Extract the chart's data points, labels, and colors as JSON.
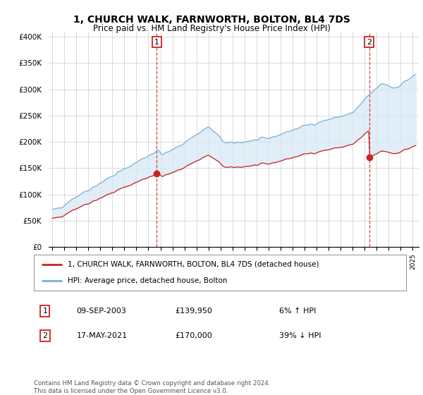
{
  "title": "1, CHURCH WALK, FARNWORTH, BOLTON, BL4 7DS",
  "subtitle": "Price paid vs. HM Land Registry's House Price Index (HPI)",
  "title_fontsize": 10,
  "subtitle_fontsize": 8.5,
  "ylabel_ticks": [
    "£0",
    "£50K",
    "£100K",
    "£150K",
    "£200K",
    "£250K",
    "£300K",
    "£350K",
    "£400K"
  ],
  "ytick_vals": [
    0,
    50000,
    100000,
    150000,
    200000,
    250000,
    300000,
    350000,
    400000
  ],
  "ylim": [
    0,
    410000
  ],
  "sale1_date_yr": 2003.69,
  "sale1_price": 139950,
  "sale2_date_yr": 2021.37,
  "sale2_price": 170000,
  "legend_line1": "1, CHURCH WALK, FARNWORTH, BOLTON, BL4 7DS (detached house)",
  "legend_line2": "HPI: Average price, detached house, Bolton",
  "table_row1": [
    "1",
    "09-SEP-2003",
    "£139,950",
    "6% ↑ HPI"
  ],
  "table_row2": [
    "2",
    "17-MAY-2021",
    "£170,000",
    "39% ↓ HPI"
  ],
  "footnote": "Contains HM Land Registry data © Crown copyright and database right 2024.\nThis data is licensed under the Open Government Licence v3.0.",
  "hpi_color": "#7ab0d4",
  "hpi_fill_color": "#daeaf5",
  "price_color": "#cc2222",
  "vline_color": "#cc2222",
  "background_color": "#ffffff",
  "grid_color": "#cccccc"
}
